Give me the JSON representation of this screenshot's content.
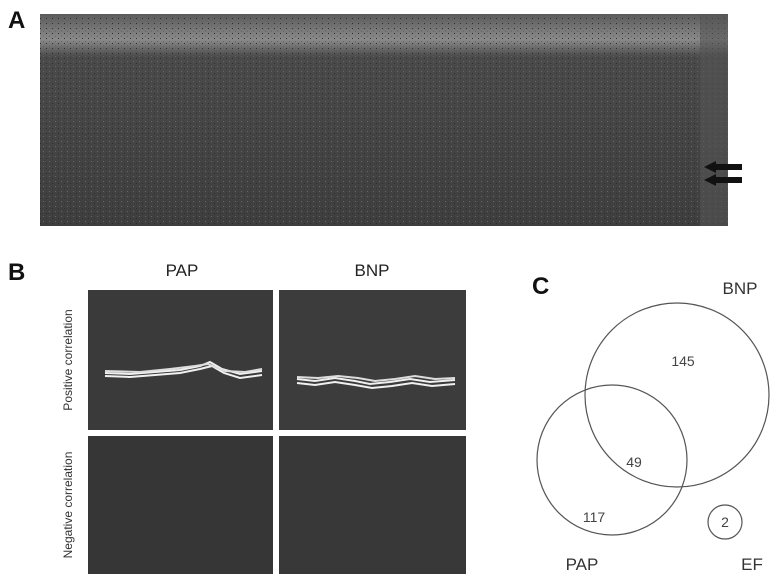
{
  "panel_a": {
    "letter": "A"
  },
  "panel_b": {
    "letter": "B",
    "columns": [
      "PAP",
      "BNP"
    ],
    "rows": [
      "Positive correlation",
      "Negative correlation"
    ]
  },
  "panel_c": {
    "letter": "C",
    "sets": [
      "BNP",
      "PAP",
      "EF"
    ],
    "counts": {
      "bnp_only": "145",
      "overlap": "49",
      "pap_only": "117",
      "ef_only": "2"
    }
  }
}
